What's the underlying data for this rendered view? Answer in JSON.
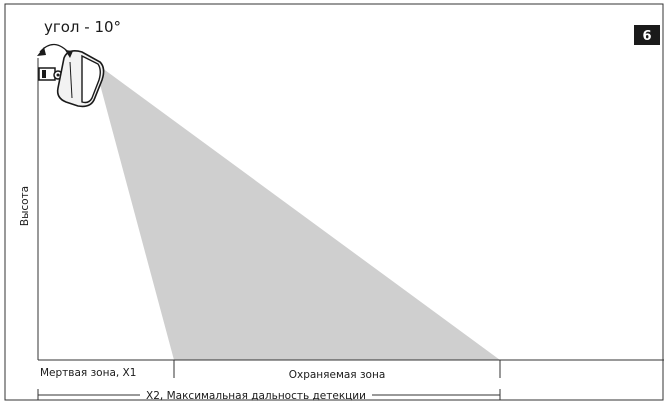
{
  "diagram": {
    "angle_label": "угол - 10°",
    "figure_number": "6",
    "y_axis_label": "Высота",
    "dead_zone_label": "Мертвая зона, X1",
    "protected_zone_label": "Охраняемая зона",
    "max_range_label": "X2, Максимальная дальность детекции",
    "colors": {
      "frame": "#333333",
      "beam": "#cfcfcf",
      "badge": "#1a1a1a",
      "sensor_body": "#f2f2f2"
    }
  }
}
